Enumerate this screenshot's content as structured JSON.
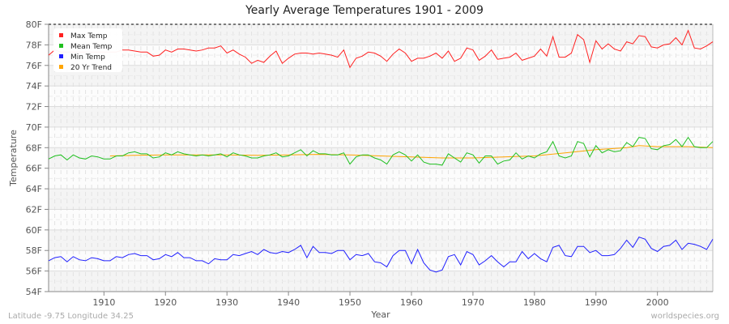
{
  "chart_data": {
    "type": "line",
    "title": "Yearly Average Temperatures 1901 - 2009",
    "xlabel": "Year",
    "ylabel": "Temperature",
    "xlim": [
      1901,
      2009
    ],
    "ylim": [
      54,
      80
    ],
    "xticks": [
      1910,
      1920,
      1930,
      1940,
      1950,
      1960,
      1970,
      1980,
      1990,
      2000
    ],
    "yticks": [
      "54F",
      "56F",
      "58F",
      "60F",
      "62F",
      "64F",
      "66F",
      "68F",
      "70F",
      "72F",
      "74F",
      "76F",
      "78F",
      "80F"
    ],
    "grid": true,
    "legend_position": "top-left",
    "x_start": 1901,
    "series": [
      {
        "name": "Max Temp",
        "color": "#ff2020",
        "values": [
          77.0,
          77.5,
          77.3,
          77.3,
          77.3,
          77.3,
          77.3,
          77.3,
          77.3,
          77.3,
          77.3,
          77.3,
          77.5,
          77.5,
          77.4,
          77.3,
          77.3,
          76.9,
          77.0,
          77.5,
          77.3,
          77.6,
          77.6,
          77.5,
          77.4,
          77.5,
          77.7,
          77.7,
          77.9,
          77.2,
          77.5,
          77.1,
          76.8,
          76.2,
          76.5,
          76.3,
          76.9,
          77.4,
          76.2,
          76.7,
          77.1,
          77.2,
          77.2,
          77.1,
          77.2,
          77.1,
          77.0,
          76.8,
          77.5,
          75.8,
          76.7,
          76.9,
          77.3,
          77.2,
          76.9,
          76.4,
          77.1,
          77.6,
          77.2,
          76.4,
          76.7,
          76.7,
          76.9,
          77.2,
          76.7,
          77.4,
          76.4,
          76.7,
          77.7,
          77.5,
          76.5,
          76.9,
          77.5,
          76.6,
          76.7,
          76.8,
          77.2,
          76.5,
          76.7,
          76.9,
          77.6,
          76.9,
          78.8,
          76.8,
          76.8,
          77.2,
          79.0,
          78.5,
          76.3,
          78.4,
          77.6,
          78.1,
          77.6,
          77.4,
          78.3,
          78.1,
          78.9,
          78.8,
          77.8,
          77.7,
          78.0,
          78.1,
          78.7,
          78.0,
          79.4,
          77.7,
          77.6,
          77.9,
          78.3
        ]
      },
      {
        "name": "Mean Temp",
        "color": "#20c020",
        "values": [
          66.9,
          67.2,
          67.3,
          66.8,
          67.3,
          67.0,
          66.9,
          67.2,
          67.1,
          66.9,
          66.9,
          67.2,
          67.2,
          67.5,
          67.6,
          67.4,
          67.4,
          67.0,
          67.1,
          67.5,
          67.3,
          67.6,
          67.4,
          67.3,
          67.2,
          67.3,
          67.2,
          67.3,
          67.4,
          67.1,
          67.5,
          67.3,
          67.2,
          67.0,
          67.0,
          67.2,
          67.3,
          67.5,
          67.1,
          67.2,
          67.5,
          67.8,
          67.2,
          67.7,
          67.4,
          67.4,
          67.3,
          67.3,
          67.5,
          66.4,
          67.1,
          67.3,
          67.3,
          67.0,
          66.8,
          66.4,
          67.3,
          67.6,
          67.3,
          66.7,
          67.3,
          66.6,
          66.4,
          66.4,
          66.3,
          67.4,
          67.0,
          66.6,
          67.5,
          67.3,
          66.5,
          67.2,
          67.2,
          66.4,
          66.7,
          66.8,
          67.5,
          66.9,
          67.2,
          67.0,
          67.4,
          67.6,
          68.6,
          67.2,
          67.0,
          67.2,
          68.6,
          68.4,
          67.1,
          68.2,
          67.5,
          67.8,
          67.6,
          67.7,
          68.5,
          68.1,
          69.0,
          68.9,
          67.9,
          67.8,
          68.2,
          68.3,
          68.8,
          68.1,
          69.0,
          68.1,
          68.0,
          68.0,
          68.6
        ]
      },
      {
        "name": "Min Temp",
        "color": "#2020ff",
        "values": [
          57.0,
          57.3,
          57.4,
          56.9,
          57.4,
          57.1,
          57.0,
          57.3,
          57.2,
          57.0,
          57.0,
          57.4,
          57.3,
          57.6,
          57.7,
          57.5,
          57.5,
          57.1,
          57.2,
          57.6,
          57.4,
          57.8,
          57.3,
          57.3,
          57.0,
          57.0,
          56.7,
          57.2,
          57.1,
          57.1,
          57.6,
          57.5,
          57.7,
          57.9,
          57.6,
          58.1,
          57.8,
          57.7,
          57.9,
          57.8,
          58.1,
          58.5,
          57.3,
          58.4,
          57.8,
          57.8,
          57.7,
          58.0,
          58.0,
          57.1,
          57.6,
          57.5,
          57.7,
          56.9,
          56.8,
          56.4,
          57.5,
          58.0,
          58.0,
          56.7,
          58.1,
          56.8,
          56.1,
          55.9,
          56.1,
          57.4,
          57.6,
          56.6,
          57.9,
          57.6,
          56.6,
          57.0,
          57.5,
          56.9,
          56.4,
          56.9,
          56.9,
          57.9,
          57.2,
          57.7,
          57.2,
          56.9,
          58.3,
          58.5,
          57.5,
          57.4,
          58.4,
          58.4,
          57.8,
          58.0,
          57.5,
          57.5,
          57.6,
          58.2,
          59.0,
          58.3,
          59.3,
          59.1,
          58.2,
          57.9,
          58.4,
          58.5,
          59.0,
          58.1,
          58.7,
          58.6,
          58.4,
          58.1,
          59.1
        ]
      },
      {
        "name": "20 Yr Trend",
        "color": "#ffa500",
        "x": [
          1911,
          1915,
          1920,
          1925,
          1930,
          1935,
          1940,
          1945,
          1950,
          1955,
          1960,
          1965,
          1970,
          1975,
          1980,
          1985,
          1990,
          1995,
          1997,
          2000,
          2005,
          2009
        ],
        "values": [
          67.2,
          67.25,
          67.3,
          67.3,
          67.3,
          67.25,
          67.3,
          67.35,
          67.3,
          67.2,
          67.1,
          67.0,
          67.0,
          67.1,
          67.2,
          67.5,
          67.8,
          68.0,
          68.2,
          68.1,
          68.1,
          68.0
        ]
      }
    ]
  },
  "footer": {
    "location": "Latitude -9.75 Longitude 34.25",
    "source": "worldspecies.org"
  }
}
